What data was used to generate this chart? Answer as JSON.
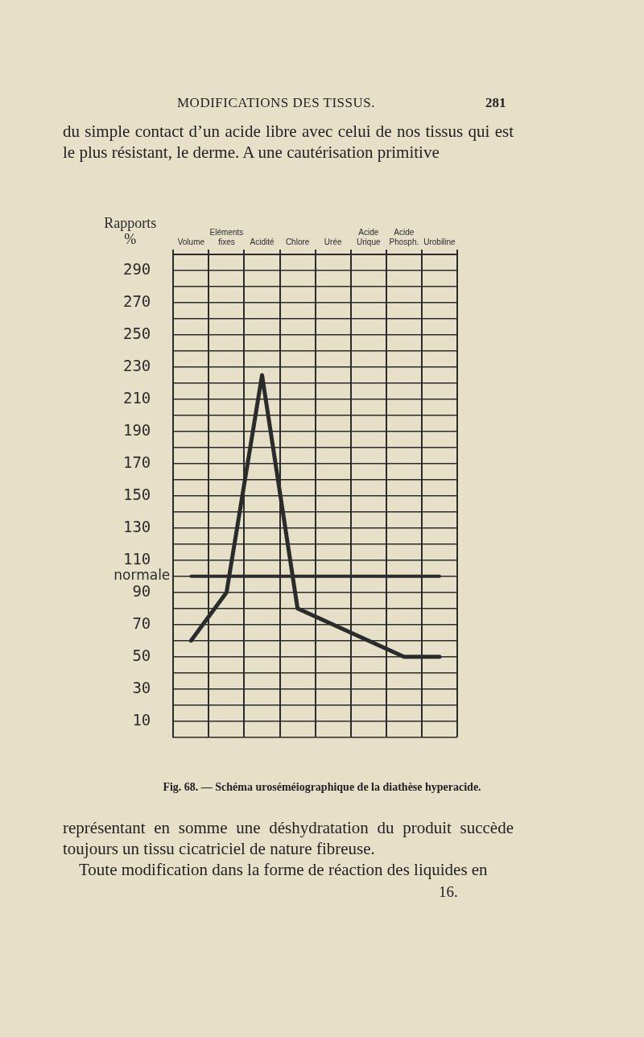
{
  "chart_data": {
    "type": "line",
    "title": "Fig. 68. — Schéma uroséméiographique de la diathèse hyperacide.",
    "ylabel": "Rapports %",
    "categories": [
      "Volume",
      "Eléments fixes",
      "Acidité",
      "Chlore",
      "Urée",
      "Acide Urique",
      "Acide Phosph.",
      "Urobiline"
    ],
    "series": [
      {
        "color": "#2b2b2b",
        "values": [
          60,
          90,
          225,
          80,
          70,
          60,
          50,
          50
        ]
      }
    ],
    "ylim": [
      0,
      300
    ],
    "yticks": [
      {
        "value": 0,
        "label": null
      },
      10,
      {
        "value": 20,
        "label": null
      },
      30,
      {
        "value": 40,
        "label": null
      },
      50,
      {
        "value": 60,
        "label": null
      },
      70,
      {
        "value": 80,
        "label": null
      },
      90,
      {
        "value": 100,
        "label": null
      },
      110,
      {
        "value": 120,
        "label": null
      },
      130,
      {
        "value": 140,
        "label": null
      },
      150,
      {
        "value": 160,
        "label": null
      },
      170,
      {
        "value": 180,
        "label": null
      },
      190,
      {
        "value": 200,
        "label": null
      },
      210,
      {
        "value": 220,
        "label": null
      },
      230,
      {
        "value": 240,
        "label": null
      },
      250,
      {
        "value": 260,
        "label": null
      },
      270,
      {
        "value": 280,
        "label": null
      },
      290,
      {
        "value": 300,
        "label": null
      }
    ],
    "ref_lines": [
      {
        "axis": "y",
        "value": 100,
        "label": "normale",
        "color": "#2b2b2b"
      }
    ],
    "grid": true,
    "legend": false,
    "marker": "none",
    "line_style": "solid",
    "annotations": [
      "MODIFICATIONS DES TISSUS.",
      "281",
      "du simple contact d’un acide libre avec celui de nos tissus qui est le plus résistant, le derme. A une cautérisation primitive",
      "représentant en somme une déshydratation du produit succède toujours un tissu cicatriciel de nature fibreuse.",
      "Toute modification dans la forme de réaction des liquides en",
      "16."
    ]
  }
}
